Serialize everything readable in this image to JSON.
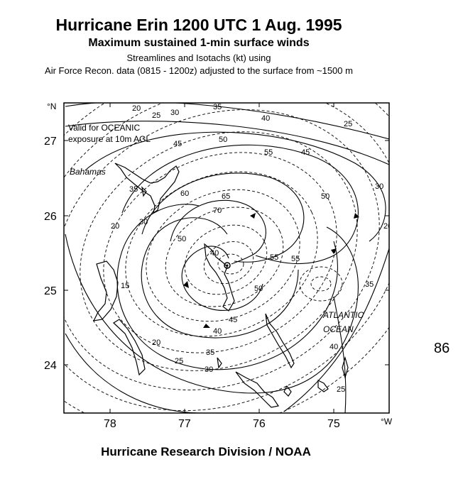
{
  "header": {
    "title": "Hurricane Erin   1200 UTC 1 Aug. 1995",
    "subtitle": "Maximum sustained 1-min surface winds",
    "line3": "Streamlines and Isotachs (kt) using",
    "line4": "Air Force Recon. data (0815 - 1200z) adjusted to the surface from ~1500 m"
  },
  "map": {
    "note_line1": "Valid for OCEANIC",
    "note_line2": "exposure at 10m AGL",
    "label_bahamas": "Bahamas",
    "label_atlantic": "ATLANTIC",
    "label_ocean": "OCEAN",
    "lat_unit": "°N",
    "lon_unit": "°W",
    "lat_ticks": [
      "27",
      "26",
      "25",
      "24"
    ],
    "lon_ticks": [
      "78",
      "77",
      "76",
      "75"
    ],
    "isotachs": [
      "20",
      "25",
      "30",
      "35",
      "40",
      "45",
      "50",
      "55",
      "60",
      "65",
      "70",
      "40",
      "50",
      "55",
      "45",
      "50",
      "35",
      "30",
      "25",
      "20",
      "15",
      "20",
      "25",
      "30",
      "35",
      "40",
      "45",
      "50",
      "55",
      "40",
      "35",
      "30",
      "20",
      "25"
    ]
  },
  "footer": "Hurricane Research Division / NOAA",
  "figure_number": "86"
}
